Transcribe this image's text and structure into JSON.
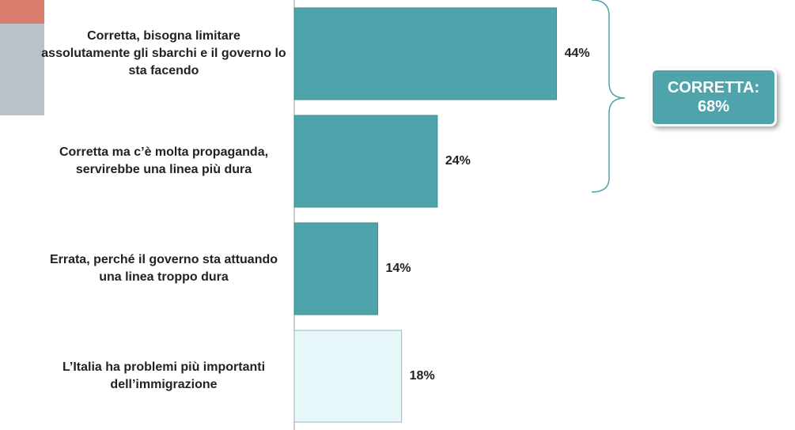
{
  "chart_data": {
    "type": "bar",
    "orientation": "horizontal",
    "categories": [
      "Corretta, bisogna limitare assolutamente gli sbarchi e il governo lo sta facendo",
      "Corretta ma c’è molta propaganda, servirebbe una linea più dura",
      "Errata, perché il governo sta attuando una linea troppo dura",
      "L’Italia ha problemi più importanti dell’immigrazione"
    ],
    "values": [
      44,
      24,
      14,
      18
    ],
    "value_labels": [
      "44%",
      "24%",
      "14%",
      "18%"
    ],
    "colors": [
      "#4fa3aa",
      "#4fa3aa",
      "#4fa3aa",
      "#e6f8fa"
    ],
    "xlim": [
      0,
      84
    ],
    "annotation": "CORRETTA: 68%"
  }
}
